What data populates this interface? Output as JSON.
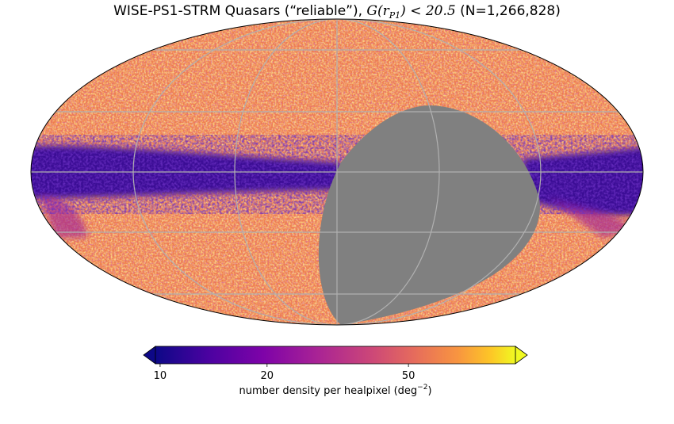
{
  "header": {
    "title_parts": [
      "WISE-PS1-STRM Quasars (“reliable”), ",
      "G(r",
      "P1",
      ") < 20.5",
      " (N=1,266,828)"
    ]
  },
  "map": {
    "projection": "mollweide",
    "grid": true
  },
  "colorbar": {
    "scale": "log",
    "lim": [
      9.7,
      100
    ],
    "ticks": [
      10,
      20,
      50
    ],
    "label_parts": [
      "number density per healpixel (deg",
      "−2",
      ")"
    ]
  }
}
